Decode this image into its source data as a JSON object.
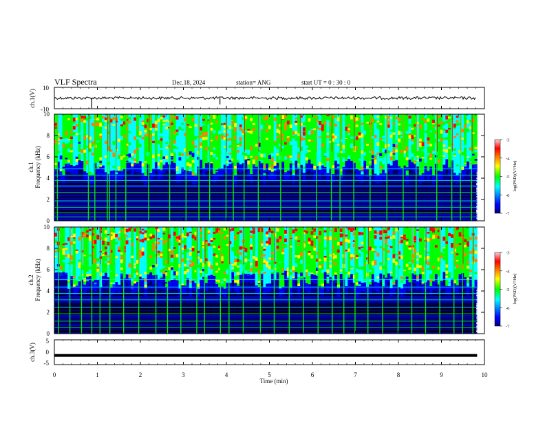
{
  "header": {
    "title": "VLF Spectra",
    "date": "Dec.18, 2024",
    "station": "station= ANG",
    "start_ut": "start  UT =   0 : 30 : 0"
  },
  "chart_data": [
    {
      "type": "line",
      "ylabel": "ch.1(V)",
      "ylim": [
        -10,
        10
      ],
      "yticks": [
        "10",
        "-10"
      ],
      "baseline_value": 0,
      "spikes": [
        {
          "x": 0.87,
          "y": -9.5
        },
        {
          "x": 3.85,
          "y": -6
        }
      ]
    },
    {
      "type": "heatmap",
      "ylabel": "ch.1\nFrequency (kHz)",
      "ylim": [
        0,
        10
      ],
      "yticks": [
        "0",
        "2",
        "4",
        "6",
        "8",
        "10"
      ],
      "colorbar": {
        "label": "log(PSD)(V²/Hz)",
        "ticks": [
          "-3",
          "-4",
          "-5",
          "-6",
          "-7"
        ],
        "range": [
          -7,
          -3
        ]
      },
      "line_hz": [
        0.4,
        0.8,
        1.3,
        1.9,
        2.7,
        3.3,
        3.8,
        4.3,
        4.9
      ],
      "burst_minutes": [
        0.06,
        0.78,
        0.93,
        1.22,
        1.27,
        1.42,
        1.65,
        2.18,
        2.67,
        3.05,
        3.35,
        3.6,
        3.98,
        4.15,
        4.4,
        4.73,
        5.25,
        5.7,
        6.08,
        6.43,
        6.63,
        6.95,
        7.33,
        7.72,
        8.1,
        8.4,
        8.88,
        9.23,
        9.43,
        9.69
      ]
    },
    {
      "type": "heatmap",
      "ylabel": "ch.2\nFrequency (kHz)",
      "ylim": [
        0,
        10
      ],
      "yticks": [
        "0",
        "2",
        "4",
        "6",
        "8",
        "10"
      ],
      "colorbar": {
        "label": "log(PSD)(V²/Hz)",
        "ticks": [
          "-3",
          "-4",
          "-5",
          "-6",
          "-7"
        ],
        "range": [
          -7,
          -3
        ]
      },
      "line_hz": [
        0.6,
        1.2,
        1.9,
        2.5,
        3.2,
        3.8,
        4.4,
        5.1
      ],
      "burst_minutes": [
        0.08,
        0.35,
        0.62,
        0.86,
        1.05,
        1.28,
        1.6,
        1.95,
        2.35,
        2.62,
        2.93,
        3.3,
        3.48,
        3.85,
        4.05,
        4.38,
        4.78,
        5.1,
        5.45,
        5.78,
        6.12,
        6.45,
        6.72,
        6.98,
        7.28,
        7.62,
        7.98,
        8.3,
        8.62,
        8.95,
        9.28,
        9.48,
        9.72
      ]
    },
    {
      "type": "line",
      "ylabel": "ch.3(V)",
      "ylim": [
        -5,
        5
      ],
      "yticks": [
        "5",
        "0",
        "-5"
      ],
      "baseline_value": -1.3
    }
  ],
  "xaxis": {
    "label": "Time  (min)",
    "xlim": [
      0,
      10
    ],
    "ticks": [
      "0",
      "1",
      "2",
      "3",
      "4",
      "5",
      "6",
      "7",
      "8",
      "9",
      "10"
    ],
    "data_end_min": 9.83
  },
  "colors": {
    "black": "#000000",
    "navy": "#000080",
    "blue": "#0000ff",
    "cyan": "#00ffff",
    "green": "#00ff00",
    "yellow": "#ffff00",
    "orange": "#ff8000",
    "red": "#ff0000"
  }
}
